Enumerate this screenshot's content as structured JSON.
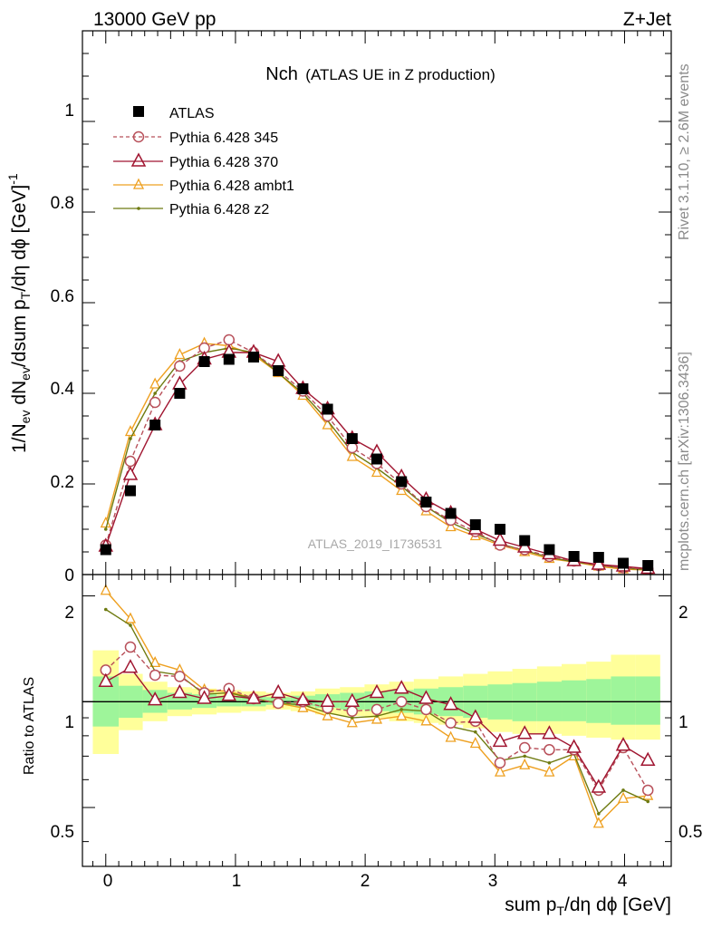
{
  "header": {
    "left": "13000 GeV pp",
    "right": "Z+Jet"
  },
  "title": {
    "main": "Nch",
    "sub": "(ATLAS UE in Z production)"
  },
  "side_labels": {
    "top": "Rivet 3.1.10, ≥ 2.6M events",
    "bottom": "mcplots.cern.ch [arXiv:1306.3436]"
  },
  "watermark": "ATLAS_2019_I1736531",
  "axes": {
    "ylabel_main": "1/N_ev dN_ev/dsum p_T/dη dϕ [GeV]^-1",
    "ylabel_ratio": "Ratio to ATLAS",
    "xlabel": "sum p_T/dη dϕ [GeV]"
  },
  "colors": {
    "atlas": "#000000",
    "p345": "#b8505a",
    "p370": "#a01530",
    "ambt1": "#eea020",
    "z2": "#6e7a10",
    "band_inner": "#9ef59a",
    "band_outer": "#ffff9a"
  },
  "chart_data": [
    {
      "type": "scatter",
      "panel": "main",
      "xlim": [
        -0.18,
        4.36
      ],
      "ylim": [
        0,
        1.2
      ],
      "grid": false,
      "legend_position": "top-left",
      "xticks": [
        0,
        1,
        2,
        3,
        4
      ],
      "yticks": [
        0.2,
        0.4,
        0.6,
        0.8,
        1
      ],
      "ytick_labels": [
        "0.2",
        "0.4",
        "0.6",
        "0.8",
        "1"
      ],
      "x": [
        0,
        0.19,
        0.38,
        0.57,
        0.76,
        0.95,
        1.14,
        1.33,
        1.52,
        1.71,
        1.9,
        2.09,
        2.28,
        2.47,
        2.66,
        2.85,
        3.04,
        3.23,
        3.42,
        3.61,
        3.8,
        3.99,
        4.18
      ],
      "series": [
        {
          "name": "ATLAS",
          "key": "atlas",
          "marker": "square",
          "dashed": false,
          "values": [
            0.055,
            0.185,
            0.33,
            0.4,
            0.47,
            0.475,
            0.48,
            0.45,
            0.41,
            0.365,
            0.3,
            0.255,
            0.205,
            0.16,
            0.135,
            0.11,
            0.1,
            0.075,
            0.055,
            0.04,
            0.038,
            0.025,
            0.02
          ]
        },
        {
          "name": "Pythia 6.428 345",
          "key": "p345",
          "marker": "circle",
          "dashed": true,
          "values": [
            0.065,
            0.25,
            0.38,
            0.46,
            0.5,
            0.518,
            0.49,
            0.45,
            0.405,
            0.35,
            0.28,
            0.245,
            0.2,
            0.15,
            0.12,
            0.095,
            0.065,
            0.055,
            0.04,
            0.03,
            0.02,
            0.015,
            0.012
          ]
        },
        {
          "name": "Pythia 6.428 370",
          "key": "p370",
          "marker": "triangle",
          "dashed": false,
          "values": [
            0.062,
            0.22,
            0.33,
            0.42,
            0.475,
            0.49,
            0.49,
            0.47,
            0.41,
            0.365,
            0.3,
            0.27,
            0.215,
            0.165,
            0.135,
            0.1,
            0.075,
            0.06,
            0.045,
            0.03,
            0.022,
            0.018,
            0.013
          ]
        },
        {
          "name": "Pythia 6.428 ambt1",
          "key": "ambt1",
          "marker": "triangle-small",
          "dashed": false,
          "values": [
            0.113,
            0.315,
            0.42,
            0.485,
            0.51,
            0.505,
            0.485,
            0.445,
            0.395,
            0.33,
            0.26,
            0.225,
            0.185,
            0.14,
            0.105,
            0.085,
            0.065,
            0.05,
            0.035,
            0.028,
            0.018,
            0.012,
            0.01
          ]
        },
        {
          "name": "Pythia 6.428 z2",
          "key": "z2",
          "marker": "dot",
          "dashed": false,
          "values": [
            0.1,
            0.3,
            0.4,
            0.47,
            0.49,
            0.5,
            0.49,
            0.445,
            0.4,
            0.34,
            0.27,
            0.235,
            0.195,
            0.15,
            0.115,
            0.09,
            0.068,
            0.053,
            0.038,
            0.028,
            0.021,
            0.014,
            0.011
          ]
        }
      ]
    },
    {
      "type": "line",
      "panel": "ratio",
      "xlim": [
        -0.18,
        4.36
      ],
      "ylim": [
        0.34,
        2.3
      ],
      "yscale": "log",
      "grid": false,
      "xticks": [
        0,
        1,
        2,
        3,
        4
      ],
      "xtick_labels": [
        "0",
        "1",
        "2",
        "3",
        "4"
      ],
      "yticks": [
        0.5,
        1,
        2
      ],
      "ytick_labels": [
        "0.5",
        "1",
        "2"
      ],
      "x": [
        0,
        0.19,
        0.38,
        0.57,
        0.76,
        0.95,
        1.14,
        1.33,
        1.52,
        1.71,
        1.9,
        2.09,
        2.28,
        2.47,
        2.66,
        2.85,
        3.04,
        3.23,
        3.42,
        3.61,
        3.8,
        3.99,
        4.18
      ],
      "bands": {
        "edges": [
          -0.1,
          0.1,
          0.285,
          0.475,
          0.665,
          0.855,
          1.045,
          1.235,
          1.425,
          1.615,
          1.805,
          1.995,
          2.185,
          2.375,
          2.565,
          2.755,
          2.945,
          3.135,
          3.325,
          3.515,
          3.705,
          3.895,
          4.085,
          4.275
        ],
        "inner_low": [
          0.85,
          0.9,
          0.93,
          0.95,
          0.96,
          0.97,
          0.97,
          0.98,
          0.97,
          0.96,
          0.95,
          0.94,
          0.93,
          0.92,
          0.91,
          0.9,
          0.89,
          0.88,
          0.88,
          0.88,
          0.87,
          0.86,
          0.86
        ],
        "inner_high": [
          1.18,
          1.11,
          1.08,
          1.06,
          1.05,
          1.04,
          1.04,
          1.03,
          1.04,
          1.05,
          1.06,
          1.07,
          1.08,
          1.09,
          1.1,
          1.11,
          1.12,
          1.13,
          1.14,
          1.15,
          1.16,
          1.18,
          1.18
        ],
        "outer_low": [
          0.71,
          0.83,
          0.88,
          0.91,
          0.92,
          0.93,
          0.94,
          0.95,
          0.94,
          0.92,
          0.91,
          0.9,
          0.88,
          0.87,
          0.86,
          0.84,
          0.82,
          0.81,
          0.81,
          0.8,
          0.79,
          0.78,
          0.78
        ],
        "outer_high": [
          1.4,
          1.2,
          1.14,
          1.1,
          1.09,
          1.08,
          1.07,
          1.06,
          1.07,
          1.09,
          1.1,
          1.12,
          1.14,
          1.16,
          1.18,
          1.2,
          1.22,
          1.24,
          1.26,
          1.28,
          1.3,
          1.36,
          1.36
        ]
      },
      "series": [
        {
          "name": "Pythia 6.428 345",
          "key": "p345",
          "marker": "circle",
          "dashed": true,
          "values": [
            1.23,
            1.43,
            1.19,
            1.18,
            1.06,
            1.09,
            1.02,
            0.99,
            1.0,
            0.96,
            0.94,
            0.95,
            1.0,
            0.95,
            0.87,
            0.88,
            0.67,
            0.74,
            0.73,
            0.73,
            0.56,
            0.74,
            0.56
          ]
        },
        {
          "name": "Pythia 6.428 370",
          "key": "p370",
          "marker": "triangle",
          "dashed": false,
          "values": [
            1.14,
            1.25,
            1.01,
            1.06,
            1.02,
            1.04,
            1.02,
            1.06,
            1.01,
            1.0,
            1.0,
            1.06,
            1.09,
            1.02,
            0.98,
            0.9,
            0.77,
            0.81,
            0.81,
            0.74,
            0.57,
            0.75,
            0.68
          ]
        },
        {
          "name": "Pythia 6.428 ambt1",
          "key": "ambt1",
          "marker": "triangle-small",
          "dashed": false,
          "values": [
            2.07,
            1.72,
            1.29,
            1.23,
            1.08,
            1.07,
            1.02,
            0.99,
            0.96,
            0.91,
            0.87,
            0.89,
            0.91,
            0.88,
            0.79,
            0.76,
            0.63,
            0.66,
            0.63,
            0.7,
            0.45,
            0.53,
            0.54
          ]
        },
        {
          "name": "Pythia 6.428 z2",
          "key": "z2",
          "marker": "dot",
          "dashed": false,
          "values": [
            1.83,
            1.65,
            1.22,
            1.19,
            1.05,
            1.06,
            1.02,
            0.99,
            0.98,
            0.93,
            0.9,
            0.91,
            0.95,
            0.94,
            0.85,
            0.82,
            0.68,
            0.7,
            0.67,
            0.71,
            0.48,
            0.56,
            0.52
          ]
        }
      ]
    }
  ]
}
